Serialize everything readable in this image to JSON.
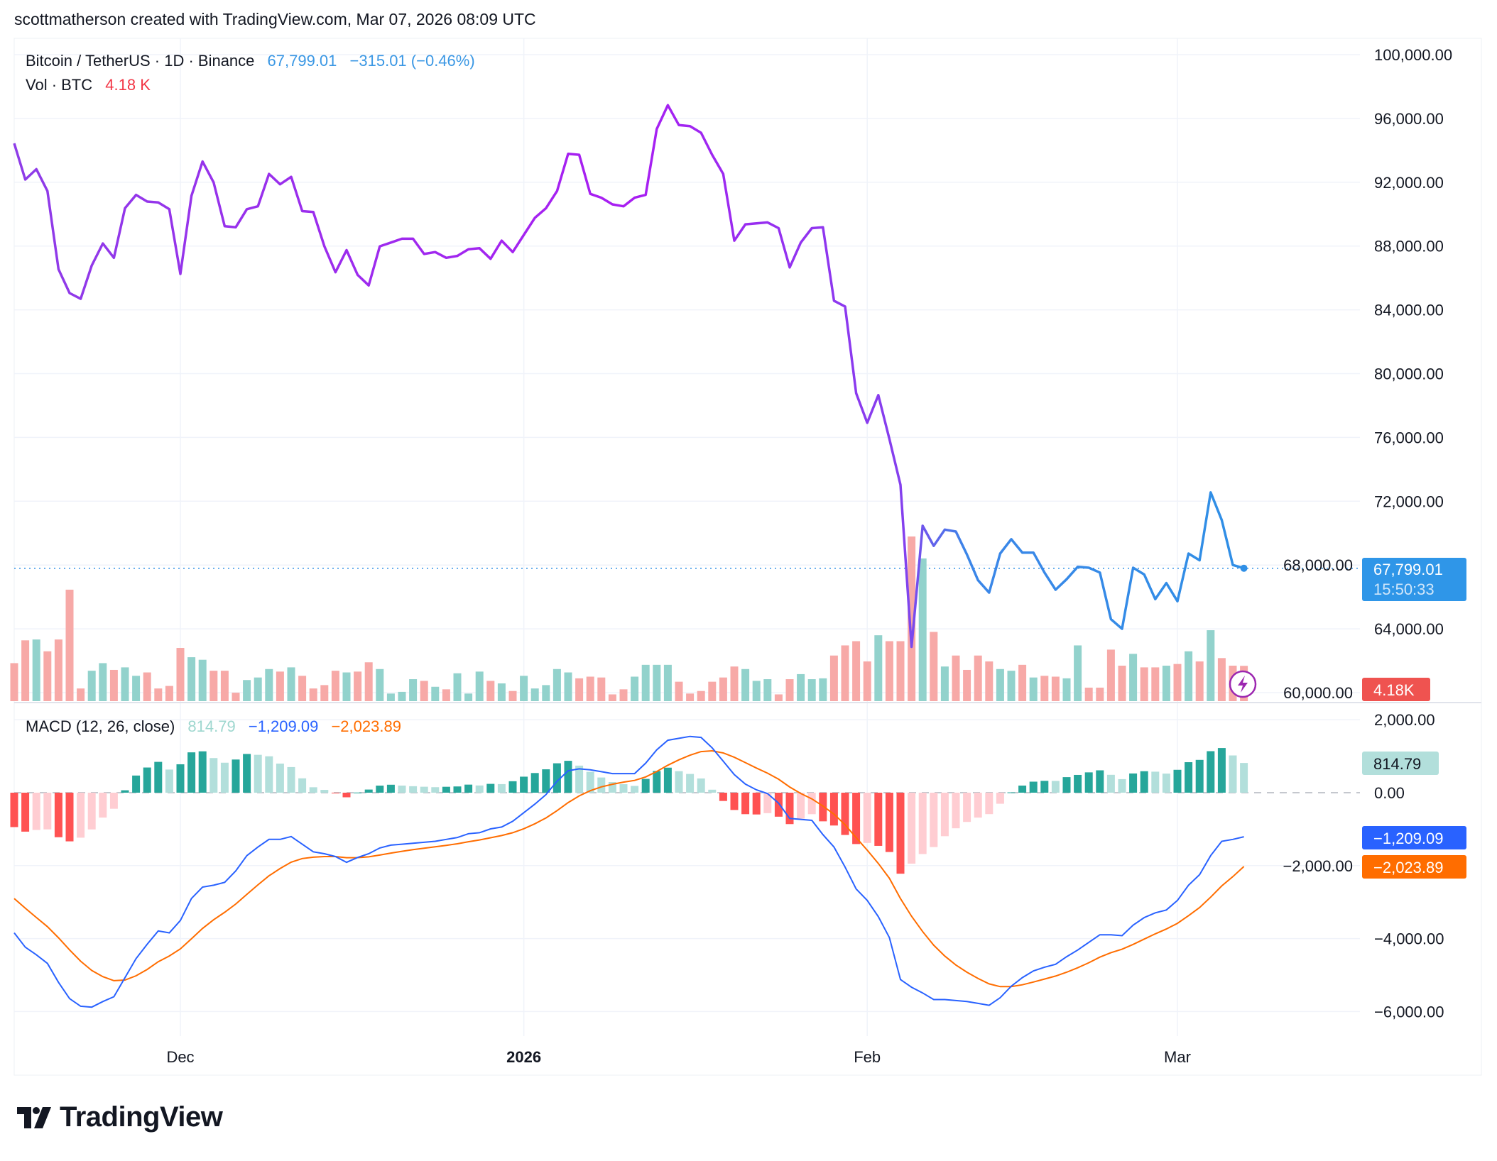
{
  "credit": "scottmatherson created with TradingView.com, Mar 07, 2026 08:09 UTC",
  "legend": {
    "symbol": "Bitcoin / TetherUS · 1D · Binance",
    "last": "67,799.01",
    "change": "−315.01 (−0.46%)",
    "vol_label": "Vol · BTC",
    "vol_value": "4.18 K",
    "macd_label": "MACD (12, 26, close)",
    "macd_hist": "814.79",
    "macd_line": "−1,209.09",
    "macd_signal": "−2,023.89"
  },
  "price_axis": [
    "100,000.00",
    "96,000.00",
    "92,000.00",
    "88,000.00",
    "84,000.00",
    "80,000.00",
    "76,000.00",
    "72,000.00",
    "68,000.00",
    "64,000.00",
    "60,000.00"
  ],
  "macd_axis": [
    "2,000.00",
    "0.00",
    "−2,000.00",
    "−4,000.00",
    "−6,000.00"
  ],
  "time_axis": [
    "Dec",
    "2026",
    "Feb",
    "Mar"
  ],
  "labels": {
    "price": "67,799.01",
    "countdown": "15:50:33",
    "volume": "4.18K",
    "hist": "814.79",
    "macd": "−1,209.09",
    "signal": "−2,023.89"
  },
  "logo_text": "TradingView",
  "colors": {
    "price_line_early": "#9b30f0",
    "price_line_late": "#2f8fe6",
    "up_volume": "#92d2cc",
    "down_volume": "#f7a9a7",
    "macd_line": "#2962ff",
    "signal_line": "#ff6d00",
    "hist_up_strong": "#26a69a",
    "hist_up_weak": "#b2dfdb",
    "hist_down_strong": "#ff5252",
    "hist_down_weak": "#ffcdd2"
  },
  "chart_data": [
    {
      "type": "line",
      "title": "Bitcoin / TetherUS · 1D · Binance",
      "ylim": [
        60000,
        100000
      ],
      "x_ticks": [
        "Dec",
        "2026",
        "Feb",
        "Mar"
      ],
      "last_value": 67799.01,
      "values": [
        94440,
        92170,
        92820,
        91450,
        86545,
        85050,
        84690,
        86780,
        88160,
        87260,
        90370,
        91210,
        90790,
        90730,
        90310,
        86250,
        91150,
        93300,
        91990,
        89240,
        89180,
        90310,
        90490,
        92520,
        91870,
        92340,
        90190,
        90130,
        87980,
        86360,
        87740,
        86190,
        85530,
        87980,
        88220,
        88460,
        88460,
        87500,
        87620,
        87260,
        87380,
        87800,
        87860,
        87200,
        88340,
        87620,
        88700,
        89770,
        90370,
        91450,
        93780,
        93720,
        91270,
        91030,
        90610,
        90490,
        91030,
        91210,
        95340,
        96830,
        95580,
        95520,
        95100,
        93720,
        92520,
        88340,
        89360,
        89420,
        89480,
        89120,
        86660,
        88220,
        89120,
        89180,
        84570,
        84210,
        78770,
        76920,
        78650,
        75900,
        73030,
        62870,
        70460,
        69200,
        70220,
        70100,
        68660,
        67050,
        66270,
        68720,
        69620,
        68780,
        68780,
        67530,
        66450,
        67110,
        67890,
        67830,
        67530,
        64600,
        64000,
        67830,
        67410,
        65860,
        66870,
        65730,
        68720,
        68300,
        72550,
        70820,
        68000,
        67799.01
      ]
    },
    {
      "type": "bar",
      "title": "Vol · BTC",
      "unit": "K",
      "values": [
        4.5,
        7.2,
        7.3,
        5.9,
        7.3,
        13.2,
        1.5,
        3.6,
        4.5,
        3.7,
        4.0,
        3.0,
        3.4,
        1.5,
        1.8,
        6.3,
        5.2,
        4.9,
        3.6,
        3.6,
        1.0,
        2.5,
        2.8,
        3.8,
        3.5,
        4.0,
        3.0,
        1.5,
        1.9,
        3.6,
        3.4,
        3.5,
        4.6,
        3.8,
        0.9,
        1.1,
        2.6,
        2.4,
        1.7,
        1.4,
        3.3,
        0.9,
        3.5,
        2.4,
        2.1,
        1.2,
        3.0,
        1.5,
        1.9,
        3.8,
        3.4,
        2.7,
        2.9,
        2.8,
        0.8,
        1.4,
        2.9,
        4.3,
        4.3,
        4.3,
        2.3,
        0.9,
        1.2,
        2.3,
        2.8,
        4.1,
        3.8,
        2.4,
        2.6,
        0.8,
        2.6,
        3.2,
        2.6,
        2.7,
        5.4,
        6.6,
        7.1,
        4.7,
        7.8,
        7.1,
        7.1,
        19.5,
        16.9,
        8.2,
        4.1,
        5.4,
        3.7,
        5.4,
        4.7,
        3.8,
        3.6,
        4.3,
        2.8,
        3.0,
        2.9,
        2.7,
        6.6,
        1.6,
        1.6,
        6.1,
        4.2,
        5.6,
        4.0,
        4.0,
        4.2,
        4.4,
        5.9,
        4.7,
        8.4,
        5.1,
        4.2,
        4.18
      ]
    },
    {
      "type": "line",
      "title": "MACD (12, 26, close)",
      "ylim": [
        -6400,
        2400
      ],
      "series": [
        {
          "name": "MACD",
          "values": [
            -3843,
            -4235,
            -4444,
            -4680,
            -5200,
            -5646,
            -5855,
            -5880,
            -5725,
            -5594,
            -5071,
            -4549,
            -4156,
            -3790,
            -3843,
            -3503,
            -2900,
            -2588,
            -2536,
            -2457,
            -2143,
            -1725,
            -1490,
            -1281,
            -1281,
            -1202,
            -1412,
            -1620,
            -1673,
            -1751,
            -1908,
            -1777,
            -1673,
            -1516,
            -1438,
            -1412,
            -1385,
            -1359,
            -1333,
            -1281,
            -1229,
            -1124,
            -1098,
            -993,
            -941,
            -784,
            -549,
            -314,
            -52,
            314,
            601,
            654,
            627,
            575,
            523,
            523,
            523,
            810,
            1176,
            1438,
            1490,
            1542,
            1516,
            1229,
            863,
            497,
            235,
            78,
            -26,
            -288,
            -706,
            -732,
            -758,
            -1150,
            -1490,
            -2039,
            -2640,
            -2954,
            -3398,
            -3973,
            -5123,
            -5333,
            -5490,
            -5672,
            -5672,
            -5699,
            -5725,
            -5777,
            -5829,
            -5620,
            -5306,
            -5071,
            -4888,
            -4784,
            -4705,
            -4496,
            -4313,
            -4104,
            -3895,
            -3895,
            -3921,
            -3633,
            -3424,
            -3293,
            -3215,
            -2954,
            -2536,
            -2248,
            -1725,
            -1333,
            -1281,
            -1209.09
          ]
        },
        {
          "name": "Signal",
          "values": [
            -2900,
            -3167,
            -3422,
            -3674,
            -3979,
            -4312,
            -4621,
            -4873,
            -5043,
            -5153,
            -5137,
            -5019,
            -4846,
            -4635,
            -4477,
            -4282,
            -4006,
            -3722,
            -3485,
            -3279,
            -3052,
            -2787,
            -2528,
            -2279,
            -2079,
            -1904,
            -1806,
            -1769,
            -1750,
            -1750,
            -1782,
            -1781,
            -1759,
            -1710,
            -1656,
            -1607,
            -1563,
            -1522,
            -1484,
            -1443,
            -1400,
            -1345,
            -1296,
            -1235,
            -1176,
            -1098,
            -988,
            -853,
            -693,
            -492,
            -273,
            -88,
            55,
            159,
            232,
            290,
            337,
            432,
            581,
            752,
            900,
            1028,
            1126,
            1147,
            1090,
            971,
            824,
            675,
            535,
            370,
            155,
            -22,
            -169,
            -365,
            -590,
            -880,
            -1232,
            -1576,
            -1940,
            -2347,
            -2902,
            -3388,
            -3808,
            -4181,
            -4479,
            -4723,
            -4923,
            -5094,
            -5241,
            -5317,
            -5315,
            -5266,
            -5190,
            -5109,
            -5028,
            -4922,
            -4800,
            -4661,
            -4508,
            -4385,
            -4292,
            -4160,
            -4013,
            -3869,
            -3738,
            -3581,
            -3372,
            -3147,
            -2863,
            -2557,
            -2302,
            -2023.89
          ]
        },
        {
          "name": "Histogram",
          "values": [
            -943,
            -1068,
            -1022,
            -1006,
            -1221,
            -1334,
            -1234,
            -1007,
            -682,
            -441,
            66,
            470,
            690,
            845,
            634,
            779,
            1106,
            1134,
            949,
            822,
            909,
            1062,
            1038,
            998,
            798,
            702,
            394,
            149,
            77,
            -1,
            -126,
            4,
            86,
            194,
            218,
            195,
            178,
            163,
            151,
            162,
            171,
            221,
            198,
            242,
            235,
            314,
            439,
            539,
            641,
            806,
            874,
            742,
            572,
            416,
            291,
            233,
            186,
            378,
            595,
            686,
            590,
            514,
            390,
            82,
            -227,
            -474,
            -589,
            -597,
            -561,
            -658,
            -861,
            -710,
            -589,
            -785,
            -900,
            -1159,
            -1408,
            -1378,
            -1458,
            -1626,
            -2221,
            -1945,
            -1682,
            -1491,
            -1193,
            -976,
            -802,
            -683,
            -588,
            -303,
            9,
            195,
            302,
            325,
            323,
            426,
            487,
            557,
            613,
            490,
            371,
            527,
            589,
            576,
            523,
            627,
            836,
            899,
            1138,
            1224,
            1021,
            814.79
          ]
        }
      ]
    }
  ]
}
